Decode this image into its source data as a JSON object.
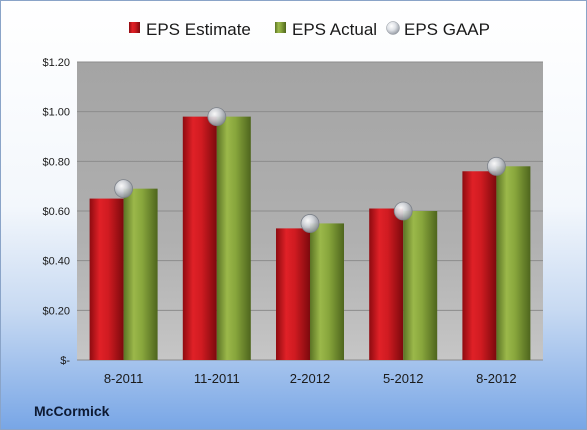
{
  "company": "McCormick",
  "colors": {
    "estimate": "#c8151b",
    "actual": "#7f9c34",
    "gaap": "#b8bcc4",
    "plot_bg": "#a6a6a6"
  },
  "chart_data": {
    "type": "bar",
    "categories": [
      "8-2011",
      "11-2011",
      "2-2012",
      "5-2012",
      "8-2012"
    ],
    "series": [
      {
        "name": "EPS Estimate",
        "type": "bar",
        "values": [
          0.65,
          0.98,
          0.53,
          0.61,
          0.76
        ]
      },
      {
        "name": "EPS Actual",
        "type": "bar",
        "values": [
          0.69,
          0.98,
          0.55,
          0.6,
          0.78
        ]
      },
      {
        "name": "EPS GAAP",
        "type": "scatter",
        "values": [
          0.69,
          0.98,
          0.55,
          0.6,
          0.78
        ]
      }
    ],
    "ylim": [
      0,
      1.2
    ],
    "yticks": [
      0,
      0.2,
      0.4,
      0.6,
      0.8,
      1.0,
      1.2
    ],
    "ytick_labels": [
      "$-",
      "$0.20",
      "$0.40",
      "$0.60",
      "$0.80",
      "$1.00",
      "$1.20"
    ],
    "grid": true,
    "legend_position": "top"
  }
}
